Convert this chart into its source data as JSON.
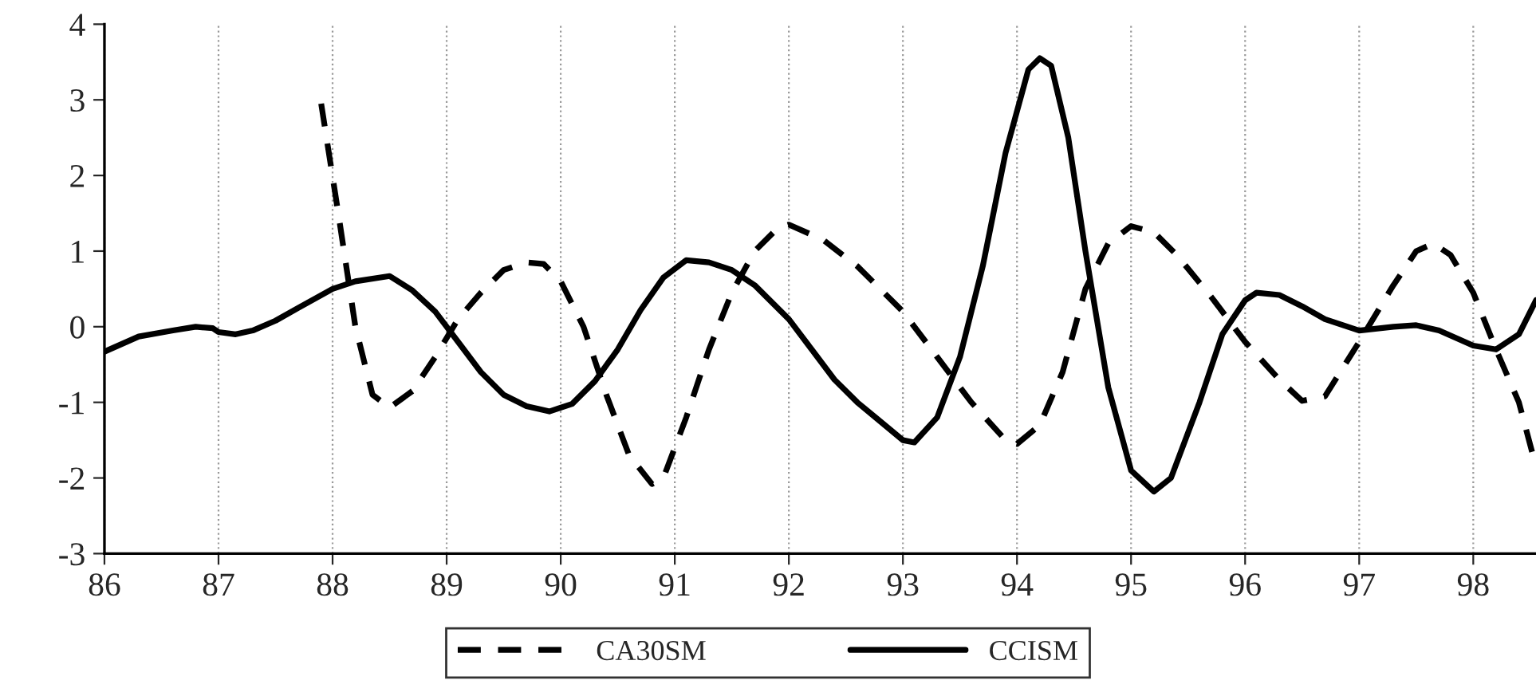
{
  "chart_data": {
    "type": "line",
    "xlim": [
      86,
      98.55
    ],
    "xticks": [
      86,
      87,
      88,
      89,
      90,
      91,
      92,
      93,
      94,
      95,
      96,
      97,
      98
    ],
    "ylim": [
      -3,
      4
    ],
    "yticks": [
      -3,
      -2,
      -1,
      0,
      1,
      2,
      3,
      4
    ],
    "grid": "x",
    "legend": "bottom",
    "marker": "none",
    "series": [
      {
        "name": "CA30SM",
        "color": "#000000",
        "line_style": "dashed",
        "x": [
          87.9,
          88.05,
          88.2,
          88.35,
          88.5,
          88.7,
          88.9,
          89.1,
          89.3,
          89.5,
          89.7,
          89.85,
          90.0,
          90.2,
          90.4,
          90.6,
          90.8,
          90.9,
          91.1,
          91.3,
          91.5,
          91.7,
          91.9,
          92.0,
          92.3,
          92.6,
          93.0,
          93.3,
          93.6,
          93.9,
          94.0,
          94.2,
          94.4,
          94.6,
          94.8,
          95.0,
          95.2,
          95.4,
          95.7,
          96.0,
          96.3,
          96.5,
          96.7,
          97.0,
          97.3,
          97.5,
          97.65,
          97.8,
          98.0,
          98.2,
          98.4,
          98.55
        ],
        "values": [
          2.95,
          1.5,
          0.0,
          -0.9,
          -1.07,
          -0.85,
          -0.4,
          0.1,
          0.45,
          0.75,
          0.85,
          0.83,
          0.6,
          0.0,
          -0.9,
          -1.7,
          -2.08,
          -2.0,
          -1.2,
          -0.3,
          0.45,
          1.0,
          1.3,
          1.35,
          1.15,
          0.8,
          0.2,
          -0.4,
          -1.0,
          -1.5,
          -1.55,
          -1.3,
          -0.6,
          0.5,
          1.1,
          1.33,
          1.25,
          0.95,
          0.4,
          -0.2,
          -0.7,
          -0.98,
          -0.92,
          -0.2,
          0.55,
          1.0,
          1.1,
          0.95,
          0.45,
          -0.3,
          -1.0,
          -1.85
        ]
      },
      {
        "name": "CCISM",
        "color": "#000000",
        "line_style": "solid",
        "x": [
          86.0,
          86.3,
          86.6,
          86.8,
          86.95,
          87.0,
          87.15,
          87.3,
          87.5,
          87.7,
          88.0,
          88.2,
          88.5,
          88.7,
          88.9,
          89.1,
          89.3,
          89.5,
          89.7,
          89.9,
          90.1,
          90.3,
          90.5,
          90.7,
          90.9,
          91.1,
          91.3,
          91.5,
          91.7,
          92.0,
          92.2,
          92.4,
          92.6,
          92.8,
          93.0,
          93.1,
          93.3,
          93.5,
          93.7,
          93.9,
          94.1,
          94.2,
          94.3,
          94.45,
          94.6,
          94.8,
          95.0,
          95.2,
          95.35,
          95.6,
          95.8,
          96.0,
          96.1,
          96.3,
          96.5,
          96.7,
          97.0,
          97.3,
          97.5,
          97.7,
          98.0,
          98.2,
          98.4,
          98.55
        ],
        "values": [
          -0.33,
          -0.13,
          -0.05,
          0.0,
          -0.02,
          -0.07,
          -0.1,
          -0.05,
          0.08,
          0.25,
          0.5,
          0.6,
          0.67,
          0.48,
          0.2,
          -0.2,
          -0.6,
          -0.9,
          -1.05,
          -1.12,
          -1.02,
          -0.72,
          -0.3,
          0.22,
          0.65,
          0.88,
          0.85,
          0.75,
          0.55,
          0.1,
          -0.3,
          -0.7,
          -1.0,
          -1.25,
          -1.5,
          -1.53,
          -1.2,
          -0.4,
          0.8,
          2.3,
          3.4,
          3.55,
          3.45,
          2.5,
          1.0,
          -0.8,
          -1.9,
          -2.18,
          -2.0,
          -1.0,
          -0.1,
          0.35,
          0.45,
          0.42,
          0.27,
          0.1,
          -0.05,
          0.0,
          0.02,
          -0.05,
          -0.25,
          -0.3,
          -0.1,
          0.35
        ]
      }
    ]
  }
}
